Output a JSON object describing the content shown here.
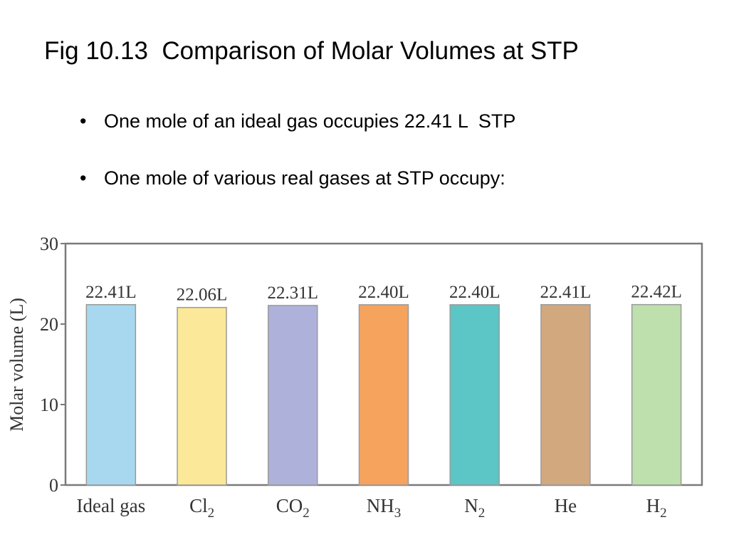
{
  "slide": {
    "title": "Fig 10.13  Comparison of Molar Volumes at STP",
    "bullets": [
      "One mole of an ideal gas occupies 22.41 L  STP",
      "One mole of various real gases at STP occupy:"
    ]
  },
  "chart_data": {
    "type": "bar",
    "title": "",
    "xlabel": "",
    "ylabel": "Molar volume (L)",
    "ylim": [
      0,
      30
    ],
    "yticks": [
      0,
      10,
      20,
      30
    ],
    "grid": false,
    "categories": [
      {
        "base": "Ideal gas",
        "sub": ""
      },
      {
        "base": "Cl",
        "sub": "2"
      },
      {
        "base": "CO",
        "sub": "2"
      },
      {
        "base": "NH",
        "sub": "3"
      },
      {
        "base": "N",
        "sub": "2"
      },
      {
        "base": "He",
        "sub": ""
      },
      {
        "base": "H",
        "sub": "2"
      }
    ],
    "values": [
      22.41,
      22.06,
      22.31,
      22.4,
      22.4,
      22.41,
      22.42
    ],
    "data_labels": [
      "22.41L",
      "22.06L",
      "22.31L",
      "22.40L",
      "22.40L",
      "22.41L",
      "22.42L"
    ],
    "colors": [
      "#a8d8ef",
      "#fbe898",
      "#aeb2da",
      "#f6a35e",
      "#5cc5c6",
      "#d2a87f",
      "#bde0ad"
    ]
  }
}
